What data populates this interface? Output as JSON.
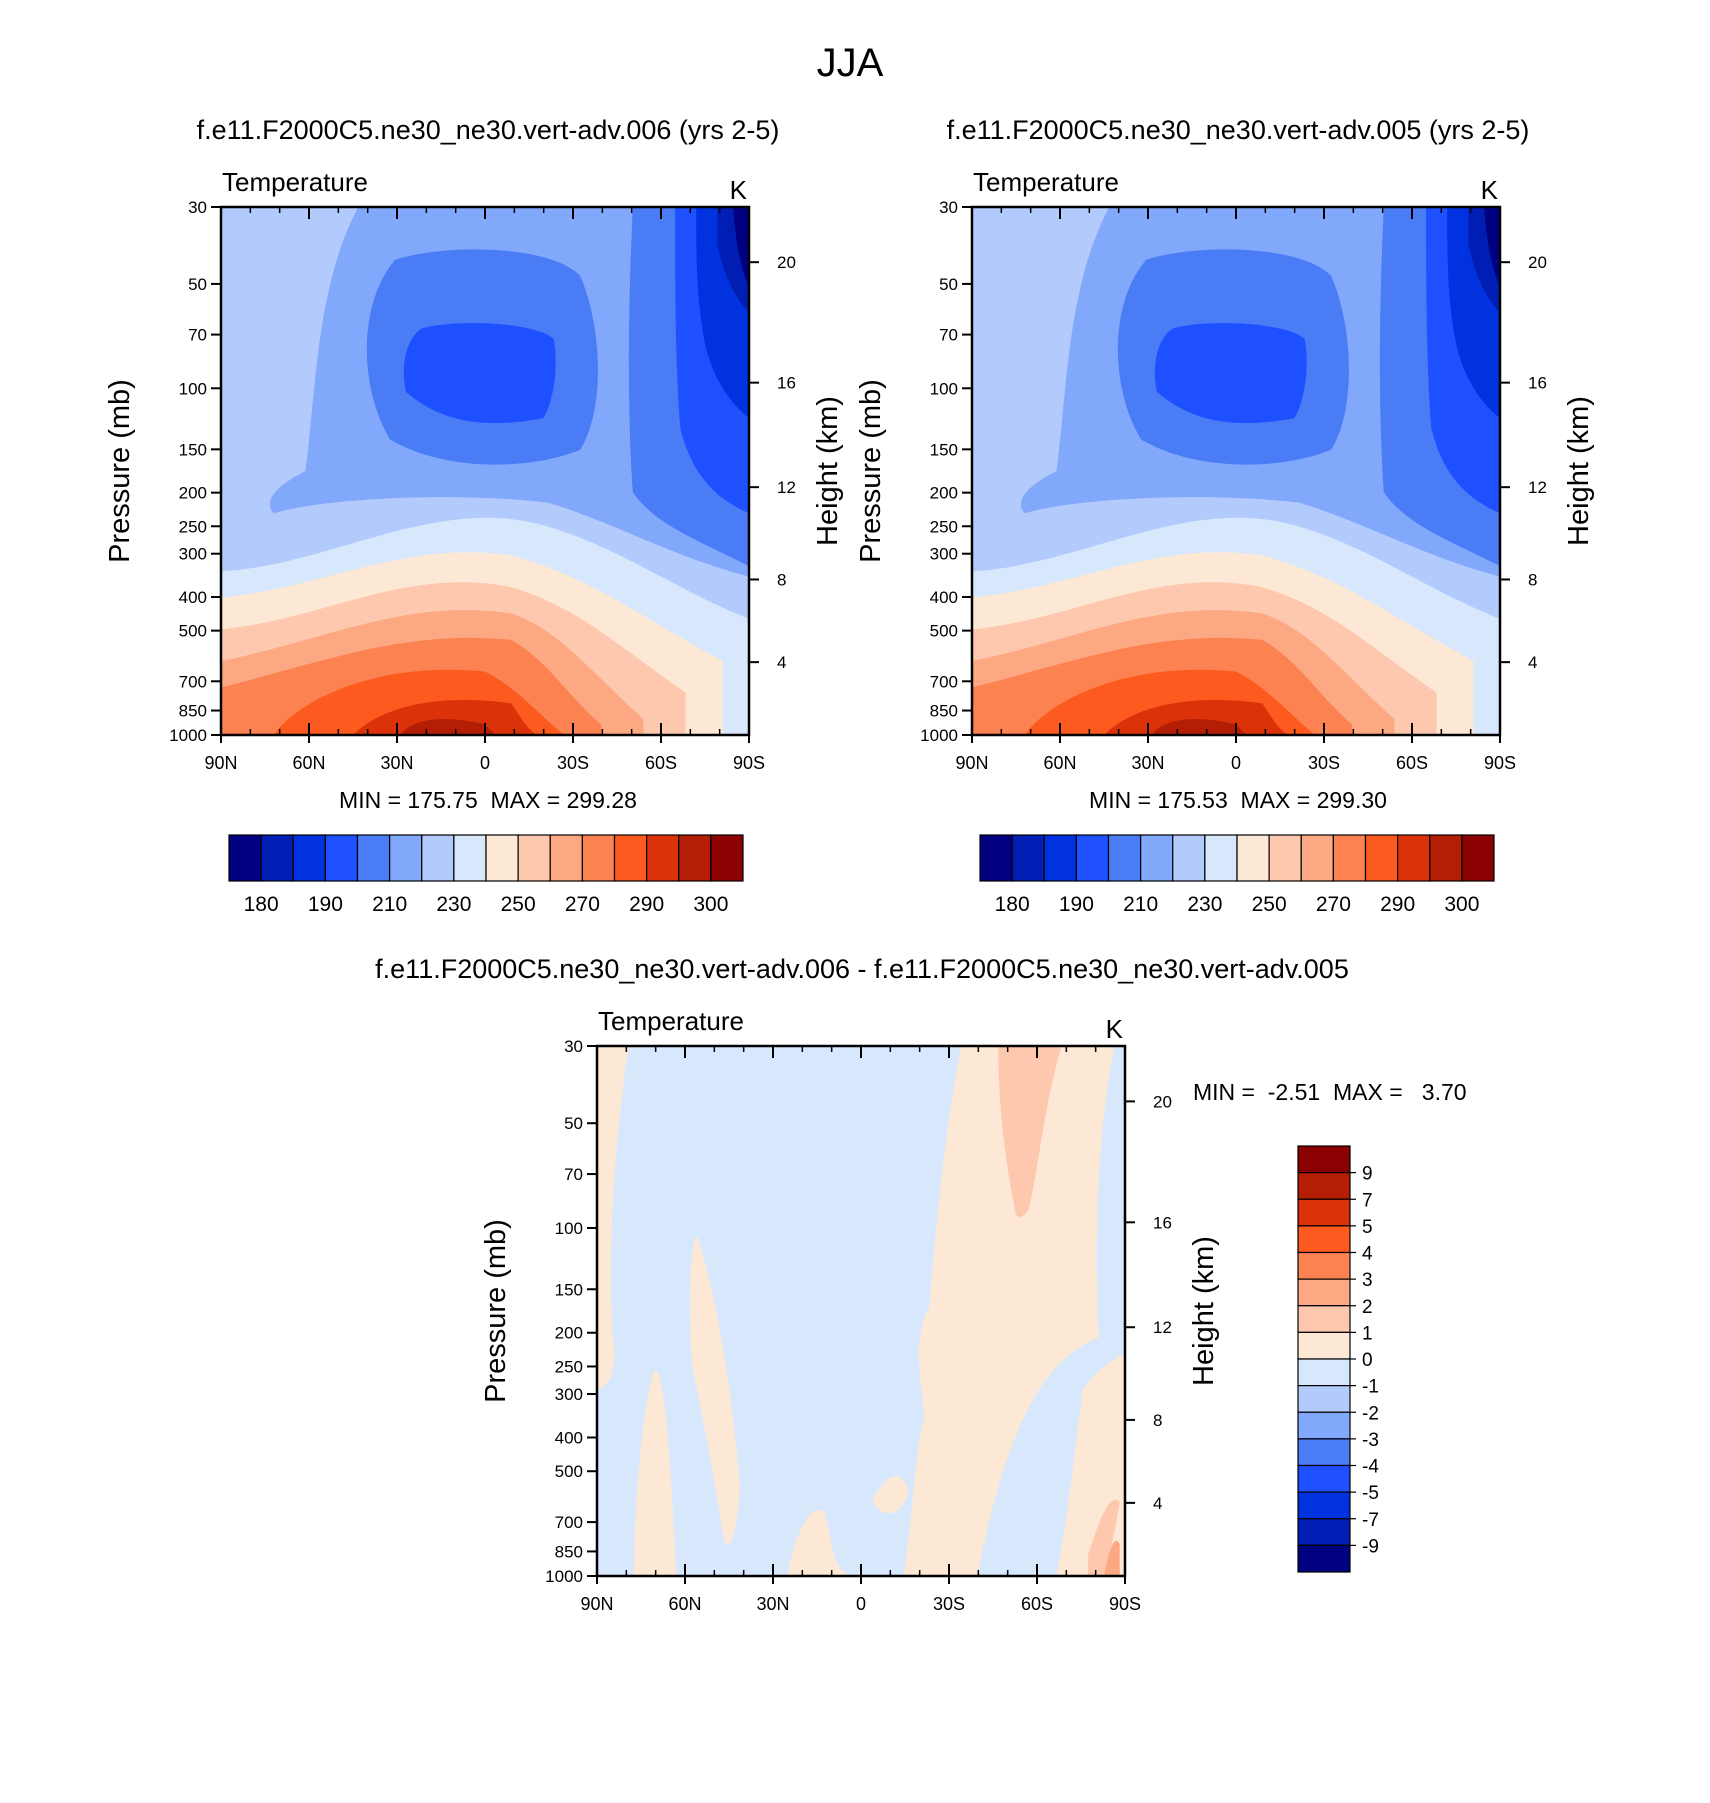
{
  "figure_title": "JJA",
  "chart_data": [
    {
      "type": "contour",
      "id": "panel-006",
      "title": "f.e11.F2000C5.ne30_ne30.vert-adv.006 (yrs 2-5)",
      "left_label": "Temperature",
      "right_label": "K",
      "ylabel": "Pressure (mb)",
      "ylabel_right": "Height (km)",
      "x_ticks": [
        "90N",
        "60N",
        "30N",
        "0",
        "30S",
        "60S",
        "90S"
      ],
      "x_range": [
        90,
        -90
      ],
      "y_ticks": [
        30,
        50,
        70,
        100,
        150,
        200,
        250,
        300,
        400,
        500,
        700,
        850,
        1000
      ],
      "y_range": [
        30,
        1000
      ],
      "height_ticks": [
        4,
        8,
        12,
        16,
        20
      ],
      "stats": "MIN = 175.75  MAX = 299.28",
      "colorbar_labels": [
        "180",
        "190",
        "210",
        "230",
        "250",
        "270",
        "290",
        "300"
      ],
      "palette": [
        "#000080",
        "#001eb4",
        "#0032e0",
        "#1e50ff",
        "#4a7cf6",
        "#82a8fc",
        "#b3cbfc",
        "#d7e8fc",
        "#fde8d6",
        "#fdc8ae",
        "#fca882",
        "#fc8252",
        "#fc5a1e",
        "#dc320a",
        "#b41e04",
        "#8b0000"
      ]
    },
    {
      "type": "contour",
      "id": "panel-005",
      "title": "f.e11.F2000C5.ne30_ne30.vert-adv.005 (yrs 2-5)",
      "left_label": "Temperature",
      "right_label": "K",
      "ylabel": "Pressure (mb)",
      "ylabel_right": "Height (km)",
      "x_ticks": [
        "90N",
        "60N",
        "30N",
        "0",
        "30S",
        "60S",
        "90S"
      ],
      "x_range": [
        90,
        -90
      ],
      "y_ticks": [
        30,
        50,
        70,
        100,
        150,
        200,
        250,
        300,
        400,
        500,
        700,
        850,
        1000
      ],
      "y_range": [
        30,
        1000
      ],
      "height_ticks": [
        4,
        8,
        12,
        16,
        20
      ],
      "stats": "MIN = 175.53  MAX = 299.30",
      "colorbar_labels": [
        "180",
        "190",
        "210",
        "230",
        "250",
        "270",
        "290",
        "300"
      ],
      "palette": [
        "#000080",
        "#001eb4",
        "#0032e0",
        "#1e50ff",
        "#4a7cf6",
        "#82a8fc",
        "#b3cbfc",
        "#d7e8fc",
        "#fde8d6",
        "#fdc8ae",
        "#fca882",
        "#fc8252",
        "#fc5a1e",
        "#dc320a",
        "#b41e04",
        "#8b0000"
      ]
    },
    {
      "type": "contour",
      "id": "panel-diff",
      "title": "f.e11.F2000C5.ne30_ne30.vert-adv.006 - f.e11.F2000C5.ne30_ne30.vert-adv.005",
      "left_label": "Temperature",
      "right_label": "K",
      "ylabel": "Pressure (mb)",
      "ylabel_right": "Height (km)",
      "x_ticks": [
        "90N",
        "60N",
        "30N",
        "0",
        "30S",
        "60S",
        "90S"
      ],
      "x_range": [
        90,
        -90
      ],
      "y_ticks": [
        30,
        50,
        70,
        100,
        150,
        200,
        250,
        300,
        400,
        500,
        700,
        850,
        1000
      ],
      "y_range": [
        30,
        1000
      ],
      "height_ticks": [
        4,
        8,
        12,
        16,
        20
      ],
      "stats": "MIN =  -2.51  MAX =   3.70",
      "colorbar_labels": [
        "9",
        "7",
        "5",
        "4",
        "3",
        "2",
        "1",
        "0",
        "-1",
        "-2",
        "-3",
        "-4",
        "-5",
        "-7",
        "-9"
      ],
      "palette": [
        "#8b0000",
        "#b41e04",
        "#dc320a",
        "#fc5a1e",
        "#fc8252",
        "#fca882",
        "#fdc8ae",
        "#fde8d6",
        "#d7e8fc",
        "#b3cbfc",
        "#82a8fc",
        "#4a7cf6",
        "#1e50ff",
        "#0032e0",
        "#001eb4",
        "#000080"
      ]
    }
  ]
}
